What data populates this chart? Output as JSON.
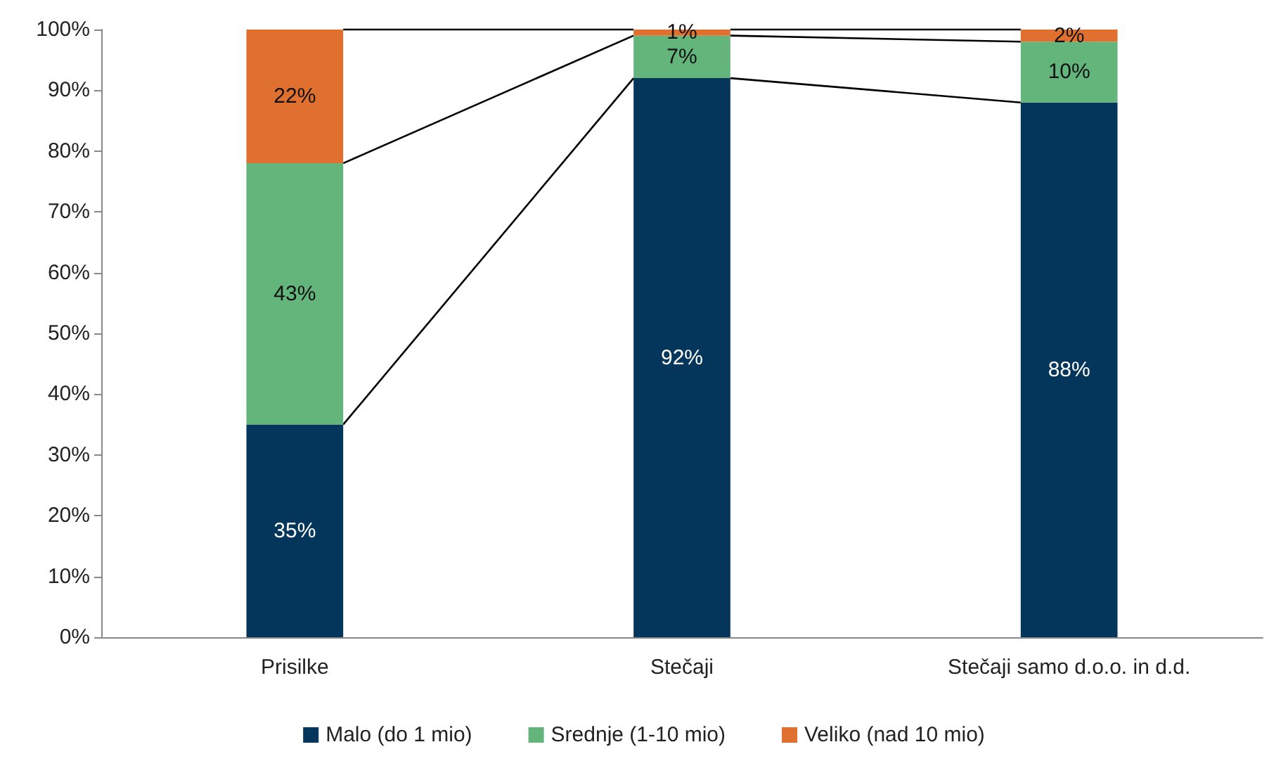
{
  "chart_data": {
    "type": "bar",
    "stacked": true,
    "categories": [
      "Prisilke",
      "Stečaji",
      "Stečaji samo d.o.o. in d.d."
    ],
    "series": [
      {
        "name": "Malo (do 1 mio)",
        "color": "#04365c",
        "values": [
          35,
          92,
          88
        ],
        "value_labels": [
          "35%",
          "92%",
          "88%"
        ]
      },
      {
        "name": "Srednje (1-10 mio)",
        "color": "#63b57c",
        "values": [
          43,
          7,
          10
        ],
        "value_labels": [
          "43%",
          "7%",
          "10%"
        ]
      },
      {
        "name": "Veliko (nad 10 mio)",
        "color": "#e07030",
        "values": [
          22,
          1,
          2
        ],
        "value_labels": [
          "22%",
          "1%",
          "2%"
        ]
      }
    ],
    "ylim": [
      0,
      100
    ],
    "yticks": [
      {
        "value": 0,
        "label": "0%"
      },
      {
        "value": 10,
        "label": "10%"
      },
      {
        "value": 20,
        "label": "20%"
      },
      {
        "value": 30,
        "label": "30%"
      },
      {
        "value": 40,
        "label": "40%"
      },
      {
        "value": 50,
        "label": "50%"
      },
      {
        "value": 60,
        "label": "60%"
      },
      {
        "value": 70,
        "label": "70%"
      },
      {
        "value": 80,
        "label": "80%"
      },
      {
        "value": 90,
        "label": "90%"
      },
      {
        "value": 100,
        "label": "100%"
      }
    ],
    "grid": false,
    "legend": "bottom"
  }
}
